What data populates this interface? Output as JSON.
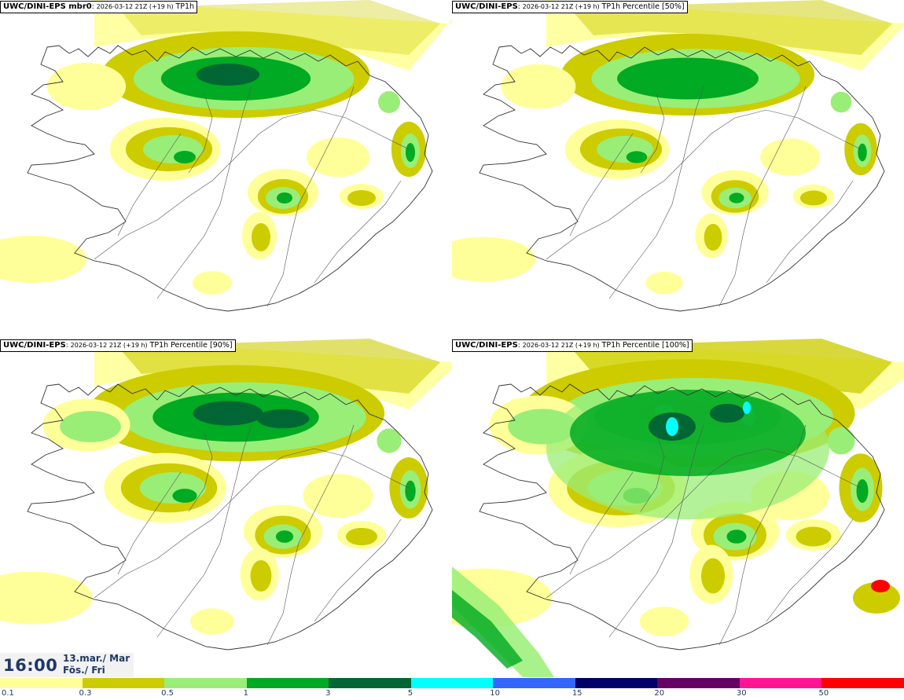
{
  "panels": [
    {
      "model": "UWC/DINI-EPS mbr0",
      "run": "2026-03-12 21Z (+19 h)",
      "product": "TP1h",
      "intensity": 0.55,
      "north_fill": 0.4
    },
    {
      "model": "UWC/DINI-EPS",
      "run": "2026-03-12 21Z (+19 h)",
      "product": "TP1h Percentile [50%]",
      "intensity": 0.45,
      "north_fill": 0.55
    },
    {
      "model": "UWC/DINI-EPS",
      "run": "2026-03-12 21Z (+19 h)",
      "product": "TP1h Percentile [90%]",
      "intensity": 0.75,
      "north_fill": 0.65
    },
    {
      "model": "UWC/DINI-EPS",
      "run": "2026-03-12 21Z (+19 h)",
      "product": "TP1h Percentile [100%]",
      "intensity": 1.0,
      "north_fill": 0.85
    }
  ],
  "valid_time": {
    "time": "16:00",
    "date_line1": "13.mar./ Mar",
    "date_line2": "Fös./ Fri"
  },
  "legend": {
    "labels": [
      "0.1",
      "0.3",
      "0.5",
      "1",
      "3",
      "5",
      "10",
      "15",
      "20",
      "30",
      "50"
    ],
    "colors": [
      "#ffff99",
      "#cccc00",
      "#99ee77",
      "#00aa22",
      "#006633",
      "#00ffff",
      "#3366ff",
      "#000066",
      "#660066",
      "#ff1493",
      "#ff0000"
    ]
  },
  "precip_colors": {
    "c01": "#ffff99",
    "c03": "#cccc00",
    "c05": "#99ee77",
    "c1": "#00aa22",
    "c3": "#006633",
    "c5": "#00ffff"
  }
}
